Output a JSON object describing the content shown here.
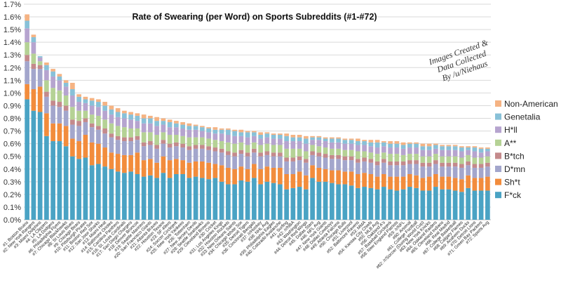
{
  "chart_data": {
    "type": "bar",
    "stacked": true,
    "title": "Rate of Swearing (per Word) on Sports Subreddits (#1-#72)",
    "credit": [
      "Images Created &",
      "Data Collected",
      "By /u/Niehaus"
    ],
    "ylim": [
      0,
      1.7
    ],
    "yticks": [
      "0.0%",
      "0.1%",
      "0.2%",
      "0.3%",
      "0.4%",
      "0.5%",
      "0.6%",
      "0.7%",
      "0.8%",
      "0.9%",
      "1.0%",
      "1.1%",
      "1.2%",
      "1.3%",
      "1.4%",
      "1.5%",
      "1.6%",
      "1.7%"
    ],
    "grid": true,
    "legend_position": "right",
    "series_names": [
      "F*ck",
      "Sh*t",
      "D*mn",
      "B*tch",
      "A**",
      "H*ll",
      "Genetalia",
      "Non-American"
    ],
    "colors": [
      "#4aa3c4",
      "#f28c3c",
      "#a3a6cc",
      "#c48a8c",
      "#b5d295",
      "#b6a4cf",
      "#88c1d8",
      "#f5b383"
    ],
    "categories": [
      "#1: Boston Bruins",
      "#2: New York Rangers",
      "#3: Miami Dolphins",
      "#4: LA Clippers",
      "#5: LA Dodgers",
      "#6: Philadelphia Flyers",
      "#7: Chicago Blackhawks",
      "#8: St Louis Blues",
      "#9: Chicago Bears",
      "#10: Pittsburgh Pirates",
      "#11: Boston Red Sox",
      "#12: San Jose Sharks",
      "#13: Miami Heat",
      "#14: Baltimore Orioles",
      "#15: Carolina Panthers",
      "#16: St. Louis Cardinals",
      "#17: San Diego Chargers",
      "#18: Denver Broncos",
      "#19: Seattle Mariners",
      "#20: San Francisco Giants",
      "#21: Atlanta Braves",
      "#22: Houston Texans",
      "#23: SF 49ers",
      "#24: Soccer Circlejerk",
      "#25: New York Yankees",
      "#26: Tottenham",
      "#27: New Jersey Devils",
      "#28: Seattle Seahawks",
      "#29: Cleveland Browns",
      "#30: Cricket",
      "#31: Los Angeles Kings",
      "#32: Houston Rockets",
      "#33: New Orleans Saints",
      "#34: Chicago White Sox",
      "#35: Detroit Tigers",
      "#36: Cincinnati Bengals",
      "#37: /r/Hockey",
      "#38: NHL Avg",
      "#39: Philadelphia Eagles",
      "#40: Colorado Avalanche",
      "#41: Surfing",
      "#42: /r/NBA",
      "#43: Washington",
      "#44: Detroit Red Wings",
      "#45: Dallas Stars",
      "#46: NFL Avg",
      "#47: New York Giants",
      "#48: Dallas Cowboys",
      "#49: Atlanta Falcons",
      "#50: Chicago Bulls",
      "#51: Liverpool",
      "#52: Baltimore Ravens",
      "#53: MMA",
      "#54: Kansas City Chiefs",
      "#55: MLB Avg",
      "#56: Oakland A's",
      "#57: Baseball Circlejerk",
      "#58: New England Patriots",
      "#59: /r/NFL",
      "#60: Arsenal",
      "#61: College Football",
      "#62: /r/Soccer (During World Cup)",
      "#63: New York Knicks",
      "#64: Oakland Raiders",
      "#65: Cleveland Indians",
      "#66: Real Madrid",
      "#67: College Basketball",
      "#68: Calgary Flames",
      "#69: Anaheim Ducks",
      "#70: Detroit Lions",
      "#71: Green Bay Packers",
      "#72: Sports Avg"
    ],
    "totals": [
      1.62,
      1.46,
      1.29,
      1.24,
      1.19,
      1.15,
      1.1,
      1.08,
      0.99,
      0.97,
      0.96,
      0.95,
      0.93,
      0.9,
      0.88,
      0.86,
      0.85,
      0.84,
      0.83,
      0.82,
      0.81,
      0.8,
      0.79,
      0.78,
      0.77,
      0.76,
      0.75,
      0.74,
      0.73,
      0.73,
      0.72,
      0.72,
      0.71,
      0.71,
      0.7,
      0.7,
      0.69,
      0.69,
      0.68,
      0.68,
      0.68,
      0.67,
      0.67,
      0.66,
      0.66,
      0.66,
      0.65,
      0.65,
      0.65,
      0.64,
      0.64,
      0.64,
      0.63,
      0.63,
      0.63,
      0.62,
      0.62,
      0.62,
      0.61,
      0.61,
      0.61,
      0.6,
      0.6,
      0.6,
      0.59,
      0.59,
      0.59,
      0.58,
      0.58,
      0.58,
      0.57,
      0.57
    ],
    "fck": [
      0.95,
      0.86,
      0.85,
      0.66,
      0.62,
      0.62,
      0.58,
      0.5,
      0.48,
      0.49,
      0.43,
      0.44,
      0.42,
      0.4,
      0.38,
      0.37,
      0.38,
      0.36,
      0.34,
      0.35,
      0.33,
      0.37,
      0.33,
      0.36,
      0.36,
      0.33,
      0.34,
      0.33,
      0.32,
      0.33,
      0.3,
      0.28,
      0.28,
      0.31,
      0.3,
      0.33,
      0.28,
      0.3,
      0.29,
      0.28,
      0.24,
      0.25,
      0.26,
      0.24,
      0.33,
      0.3,
      0.3,
      0.29,
      0.28,
      0.28,
      0.27,
      0.25,
      0.26,
      0.25,
      0.24,
      0.26,
      0.24,
      0.23,
      0.24,
      0.26,
      0.25,
      0.23,
      0.23,
      0.26,
      0.24,
      0.24,
      0.23,
      0.22,
      0.25,
      0.23,
      0.23,
      0.23
    ],
    "sht": [
      0.12,
      0.17,
      0.2,
      0.18,
      0.14,
      0.14,
      0.16,
      0.14,
      0.14,
      0.18,
      0.18,
      0.16,
      0.15,
      0.13,
      0.14,
      0.14,
      0.13,
      0.17,
      0.13,
      0.13,
      0.12,
      0.13,
      0.14,
      0.12,
      0.11,
      0.12,
      0.12,
      0.13,
      0.13,
      0.11,
      0.13,
      0.13,
      0.12,
      0.11,
      0.1,
      0.11,
      0.12,
      0.12,
      0.12,
      0.13,
      0.12,
      0.11,
      0.12,
      0.11,
      0.1,
      0.11,
      0.1,
      0.1,
      0.11,
      0.1,
      0.11,
      0.11,
      0.11,
      0.11,
      0.1,
      0.1,
      0.1,
      0.11,
      0.1,
      0.1,
      0.1,
      0.1,
      0.11,
      0.1,
      0.1,
      0.1,
      0.1,
      0.1,
      0.1,
      0.1,
      0.1,
      0.11
    ],
    "dmn": [
      0.18,
      0.16,
      0.14,
      0.13,
      0.14,
      0.13,
      0.12,
      0.11,
      0.12,
      0.1,
      0.12,
      0.11,
      0.11,
      0.12,
      0.11,
      0.11,
      0.11,
      0.1,
      0.11,
      0.11,
      0.11,
      0.1,
      0.1,
      0.1,
      0.1,
      0.1,
      0.1,
      0.1,
      0.1,
      0.1,
      0.1,
      0.1,
      0.1,
      0.1,
      0.1,
      0.09,
      0.1,
      0.09,
      0.09,
      0.09,
      0.1,
      0.1,
      0.09,
      0.1,
      0.08,
      0.09,
      0.09,
      0.09,
      0.09,
      0.09,
      0.09,
      0.09,
      0.09,
      0.09,
      0.09,
      0.09,
      0.09,
      0.09,
      0.09,
      0.08,
      0.09,
      0.09,
      0.08,
      0.08,
      0.08,
      0.08,
      0.09,
      0.09,
      0.08,
      0.08,
      0.08,
      0.08
    ],
    "btch": [
      0.05,
      0.04,
      0.03,
      0.04,
      0.04,
      0.04,
      0.04,
      0.04,
      0.04,
      0.03,
      0.03,
      0.03,
      0.04,
      0.03,
      0.03,
      0.03,
      0.03,
      0.03,
      0.03,
      0.03,
      0.03,
      0.03,
      0.03,
      0.03,
      0.03,
      0.03,
      0.03,
      0.03,
      0.03,
      0.03,
      0.03,
      0.03,
      0.03,
      0.03,
      0.03,
      0.03,
      0.03,
      0.03,
      0.03,
      0.03,
      0.03,
      0.03,
      0.03,
      0.03,
      0.03,
      0.03,
      0.03,
      0.03,
      0.03,
      0.03,
      0.03,
      0.03,
      0.03,
      0.03,
      0.03,
      0.03,
      0.03,
      0.03,
      0.03,
      0.03,
      0.03,
      0.03,
      0.03,
      0.03,
      0.03,
      0.03,
      0.03,
      0.03,
      0.03,
      0.03,
      0.03,
      0.03
    ],
    "ass": [
      0.1,
      0.08,
      0.03,
      0.09,
      0.1,
      0.09,
      0.08,
      0.1,
      0.08,
      0.06,
      0.07,
      0.08,
      0.07,
      0.08,
      0.08,
      0.08,
      0.07,
      0.06,
      0.08,
      0.07,
      0.08,
      0.06,
      0.07,
      0.06,
      0.06,
      0.07,
      0.06,
      0.06,
      0.06,
      0.06,
      0.06,
      0.07,
      0.07,
      0.06,
      0.06,
      0.05,
      0.06,
      0.06,
      0.06,
      0.06,
      0.07,
      0.07,
      0.06,
      0.06,
      0.05,
      0.05,
      0.05,
      0.05,
      0.05,
      0.05,
      0.05,
      0.06,
      0.05,
      0.05,
      0.06,
      0.05,
      0.06,
      0.06,
      0.05,
      0.05,
      0.05,
      0.05,
      0.05,
      0.05,
      0.05,
      0.05,
      0.05,
      0.05,
      0.05,
      0.05,
      0.05,
      0.05
    ],
    "hll": [
      0.11,
      0.09,
      0.03,
      0.08,
      0.09,
      0.08,
      0.07,
      0.09,
      0.07,
      0.06,
      0.07,
      0.07,
      0.07,
      0.07,
      0.07,
      0.07,
      0.07,
      0.06,
      0.07,
      0.07,
      0.07,
      0.06,
      0.06,
      0.06,
      0.06,
      0.06,
      0.06,
      0.05,
      0.05,
      0.05,
      0.06,
      0.06,
      0.06,
      0.05,
      0.06,
      0.05,
      0.05,
      0.05,
      0.05,
      0.05,
      0.06,
      0.06,
      0.06,
      0.06,
      0.04,
      0.05,
      0.05,
      0.05,
      0.05,
      0.05,
      0.05,
      0.05,
      0.05,
      0.05,
      0.05,
      0.05,
      0.05,
      0.05,
      0.05,
      0.05,
      0.05,
      0.05,
      0.05,
      0.04,
      0.05,
      0.05,
      0.05,
      0.05,
      0.04,
      0.05,
      0.04,
      0.04
    ],
    "gen": [
      0.06,
      0.04,
      0.01,
      0.04,
      0.04,
      0.03,
      0.03,
      0.05,
      0.04,
      0.03,
      0.04,
      0.04,
      0.04,
      0.04,
      0.04,
      0.04,
      0.04,
      0.04,
      0.04,
      0.04,
      0.04,
      0.03,
      0.04,
      0.03,
      0.03,
      0.03,
      0.03,
      0.03,
      0.03,
      0.03,
      0.03,
      0.04,
      0.04,
      0.03,
      0.04,
      0.03,
      0.03,
      0.03,
      0.03,
      0.03,
      0.04,
      0.03,
      0.03,
      0.04,
      0.02,
      0.02,
      0.02,
      0.03,
      0.03,
      0.03,
      0.03,
      0.03,
      0.03,
      0.03,
      0.04,
      0.03,
      0.03,
      0.03,
      0.03,
      0.03,
      0.03,
      0.03,
      0.03,
      0.03,
      0.03,
      0.03,
      0.03,
      0.03,
      0.02,
      0.03,
      0.03,
      0.02
    ]
  }
}
